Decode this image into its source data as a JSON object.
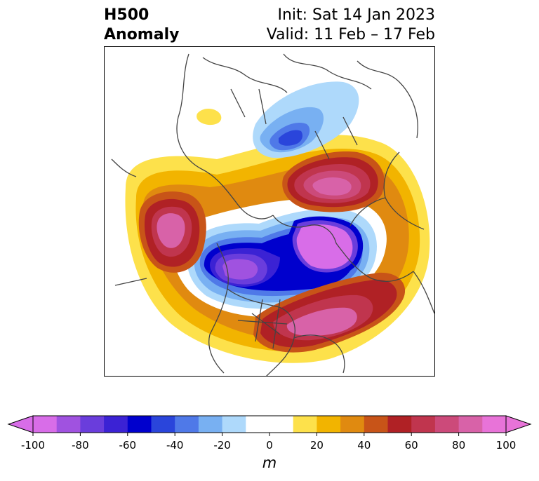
{
  "header": {
    "left_line1": "H500",
    "left_line2": "Anomaly",
    "right_line1": "Init: Sat 14 Jan 2023",
    "right_line2": "Valid: 11 Feb – 17 Feb"
  },
  "colorbar": {
    "units": "m",
    "ticks": [
      "-100",
      "-80",
      "-60",
      "-40",
      "-20",
      "0",
      "20",
      "40",
      "60",
      "80",
      "100"
    ],
    "bins": [
      {
        "min": -100,
        "max": -90,
        "color": "#d86de8"
      },
      {
        "min": -90,
        "max": -80,
        "color": "#a052e0"
      },
      {
        "min": -80,
        "max": -70,
        "color": "#6a3ddc"
      },
      {
        "min": -70,
        "max": -60,
        "color": "#3b22d4"
      },
      {
        "min": -60,
        "max": -50,
        "color": "#0000cd"
      },
      {
        "min": -50,
        "max": -40,
        "color": "#2a45db"
      },
      {
        "min": -40,
        "max": -30,
        "color": "#4f79e8"
      },
      {
        "min": -30,
        "max": -20,
        "color": "#78b0f2"
      },
      {
        "min": -20,
        "max": -10,
        "color": "#aed9fb"
      },
      {
        "min": -10,
        "max": 0,
        "color": "#ffffff"
      },
      {
        "min": 0,
        "max": 10,
        "color": "#ffffff"
      },
      {
        "min": 10,
        "max": 20,
        "color": "#fde14b"
      },
      {
        "min": 20,
        "max": 30,
        "color": "#f2b400"
      },
      {
        "min": 30,
        "max": 40,
        "color": "#e08a10"
      },
      {
        "min": 40,
        "max": 50,
        "color": "#c85418"
      },
      {
        "min": 50,
        "max": 60,
        "color": "#b02125"
      },
      {
        "min": 60,
        "max": 70,
        "color": "#c0354e"
      },
      {
        "min": 70,
        "max": 80,
        "color": "#cc4a7a"
      },
      {
        "min": 80,
        "max": 90,
        "color": "#d862a8"
      },
      {
        "min": 90,
        "max": 100,
        "color": "#e873d8"
      }
    ],
    "under_color": "#d86de8",
    "over_color": "#e873d8"
  }
}
